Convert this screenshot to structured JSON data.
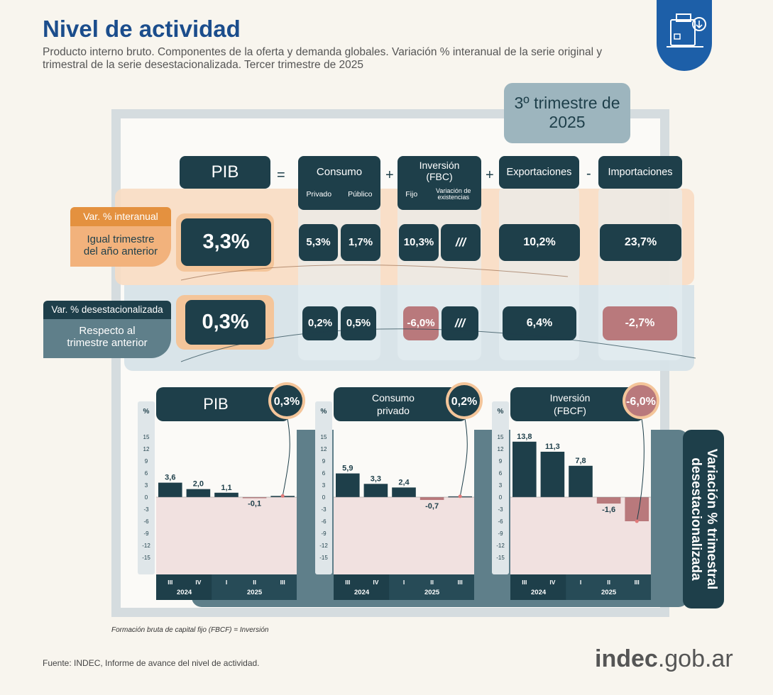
{
  "header": {
    "title": "Nivel de actividad",
    "subtitle": "Producto interno bruto. Componentes de la oferta y demanda globales. Variación % interanual de la serie original y trimestral de la serie desestacionalizada. Tercer trimestre de 2025"
  },
  "period": "3º trimestre de 2025",
  "equation": {
    "pib": "PIB",
    "equals": "=",
    "plus": "+",
    "minus": "-",
    "consumo": {
      "label": "Consumo",
      "sub1": "Privado",
      "sub2": "Público"
    },
    "inversion": {
      "label": "Inversión (FBC)",
      "sub1": "Fijo",
      "sub2": "Variación de existencias"
    },
    "exportaciones": "Exportaciones",
    "importaciones": "Importaciones"
  },
  "rows": {
    "interanual": {
      "tag": "Var. % interanual",
      "desc": "Igual trimestre del año anterior",
      "pib": "3,3%",
      "privado": "5,3%",
      "publico": "1,7%",
      "fijo": "10,3%",
      "existencias": "///",
      "exportaciones": "10,2%",
      "importaciones": "23,7%"
    },
    "desestacionalizada": {
      "tag": "Var. % desestacionalizada",
      "desc": "Respecto al trimestre anterior",
      "pib": "0,3%",
      "privado": "0,2%",
      "publico": "0,5%",
      "fijo": "-6,0%",
      "existencias": "///",
      "exportaciones": "6,4%",
      "importaciones": "-2,7%"
    }
  },
  "side_label": "Variación % trimestral desestacionalizada",
  "chart_data": [
    {
      "type": "bar",
      "title": "PIB",
      "highlight": "0,3%",
      "ylabel": "%",
      "categories": [
        "III",
        "IV",
        "I",
        "II",
        "III"
      ],
      "years": [
        "2024",
        "2025"
      ],
      "values": [
        3.6,
        2.0,
        1.1,
        -0.1,
        0.3
      ],
      "value_labels": [
        "3,6",
        "2,0",
        "1,1",
        "-0,1",
        ""
      ],
      "yticks": [
        15,
        12,
        9,
        6,
        3,
        0,
        -3,
        -6,
        -9,
        -12,
        -15
      ],
      "ylim": [
        -15,
        15
      ]
    },
    {
      "type": "bar",
      "title": "Consumo privado",
      "highlight": "0,2%",
      "ylabel": "%",
      "categories": [
        "III",
        "IV",
        "I",
        "II",
        "III"
      ],
      "years": [
        "2024",
        "2025"
      ],
      "values": [
        5.9,
        3.3,
        2.4,
        -0.7,
        0.2
      ],
      "value_labels": [
        "5,9",
        "3,3",
        "2,4",
        "-0,7",
        ""
      ],
      "yticks": [
        15,
        12,
        9,
        6,
        3,
        0,
        -3,
        -6,
        -9,
        -12,
        -15
      ],
      "ylim": [
        -15,
        15
      ]
    },
    {
      "type": "bar",
      "title": "Inversión (FBCF)",
      "highlight": "-6,0%",
      "ylabel": "%",
      "categories": [
        "III",
        "IV",
        "I",
        "II",
        "III"
      ],
      "years": [
        "2024",
        "2025"
      ],
      "values": [
        13.8,
        11.3,
        7.8,
        -1.6,
        -6.0
      ],
      "value_labels": [
        "13,8",
        "11,3",
        "7,8",
        "-1,6",
        ""
      ],
      "yticks": [
        15,
        12,
        9,
        6,
        3,
        0,
        -3,
        -6,
        -9,
        -12,
        -15
      ],
      "ylim": [
        -15,
        15
      ]
    }
  ],
  "colors": {
    "dark": "#1e3f4a",
    "negative": "#b9797c",
    "orange": "#f2b27c",
    "blue_gray": "#5f7f8a"
  },
  "footnote": "Formación bruta de capital fijo (FBCF) = Inversión",
  "source": "Fuente: INDEC, Informe de avance del nivel de actividad.",
  "brand": {
    "name": "indec",
    "domain": ".gob.ar"
  }
}
